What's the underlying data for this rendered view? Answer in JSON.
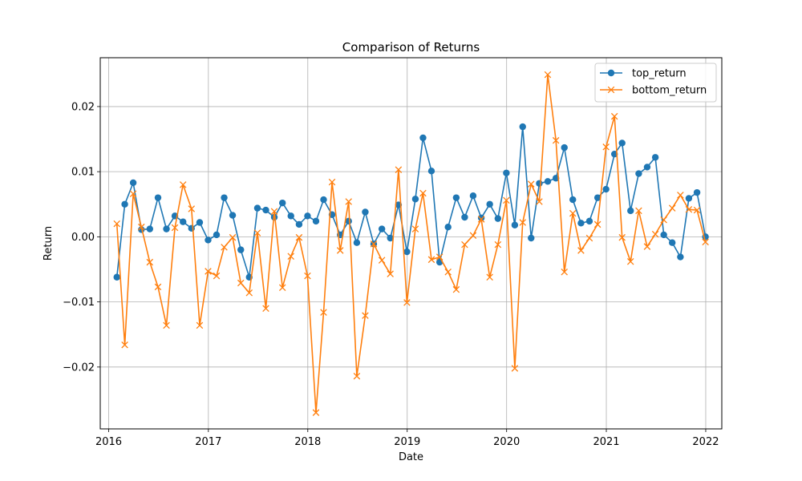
{
  "chart_data": {
    "type": "line",
    "title": "Comparison of Returns",
    "xlabel": "Date",
    "ylabel": "Return",
    "x_tick_labels": [
      "2016",
      "2017",
      "2018",
      "2019",
      "2020",
      "2021",
      "2022"
    ],
    "y_tick_labels": [
      "−0.02",
      "−0.01",
      "0.00",
      "0.01",
      "0.02"
    ],
    "y_ticks": [
      -0.02,
      -0.01,
      0.0,
      0.01,
      0.02
    ],
    "xlim": [
      "2015-12-01",
      "2022-03-01"
    ],
    "ylim": [
      -0.0295,
      0.0275
    ],
    "grid": true,
    "legend_position": "top-right",
    "x": [
      "2016-01-31",
      "2016-02-29",
      "2016-03-31",
      "2016-04-30",
      "2016-05-31",
      "2016-06-30",
      "2016-07-31",
      "2016-08-31",
      "2016-09-30",
      "2016-10-31",
      "2016-11-30",
      "2016-12-31",
      "2017-01-31",
      "2017-02-28",
      "2017-03-31",
      "2017-04-30",
      "2017-05-31",
      "2017-06-30",
      "2017-07-31",
      "2017-08-31",
      "2017-09-30",
      "2017-10-31",
      "2017-11-30",
      "2017-12-31",
      "2018-01-31",
      "2018-02-28",
      "2018-03-31",
      "2018-04-30",
      "2018-05-31",
      "2018-06-30",
      "2018-07-31",
      "2018-08-31",
      "2018-09-30",
      "2018-10-31",
      "2018-11-30",
      "2018-12-31",
      "2019-01-31",
      "2019-02-28",
      "2019-03-31",
      "2019-04-30",
      "2019-05-31",
      "2019-06-30",
      "2019-07-31",
      "2019-08-31",
      "2019-09-30",
      "2019-10-31",
      "2019-11-30",
      "2019-12-31",
      "2020-01-31",
      "2020-02-29",
      "2020-03-31",
      "2020-04-30",
      "2020-05-31",
      "2020-06-30",
      "2020-07-31",
      "2020-08-31",
      "2020-09-30",
      "2020-10-31",
      "2020-11-30",
      "2020-12-31",
      "2021-01-31",
      "2021-02-28",
      "2021-03-31",
      "2021-04-30",
      "2021-05-31",
      "2021-06-30",
      "2021-07-31",
      "2021-08-31",
      "2021-09-30",
      "2021-10-31",
      "2021-11-30",
      "2021-12-31"
    ],
    "series": [
      {
        "name": "top_return",
        "color": "#1f77b4",
        "marker": "circle",
        "values": [
          -0.0062,
          0.005,
          0.0083,
          0.0011,
          0.0012,
          0.006,
          0.0012,
          0.0032,
          0.0023,
          0.0013,
          0.0022,
          -0.0005,
          0.0003,
          0.006,
          0.0033,
          -0.002,
          -0.0062,
          0.0044,
          0.0041,
          0.003,
          0.0052,
          0.0032,
          0.0019,
          0.0032,
          0.0024,
          0.0057,
          0.0034,
          0.0003,
          0.0024,
          -0.0009,
          0.0038,
          -0.0011,
          0.0012,
          -0.0002,
          0.0049,
          -0.0023,
          0.0058,
          0.0152,
          0.0101,
          -0.0039,
          0.0015,
          0.006,
          0.003,
          0.0063,
          0.0029,
          0.005,
          0.0028,
          0.0098,
          0.0018,
          0.0169,
          -0.0002,
          0.0082,
          0.0085,
          0.009,
          0.0137,
          0.0057,
          0.0021,
          0.0024,
          0.006,
          0.0073,
          0.0127,
          0.0144,
          0.004,
          0.0097,
          0.0107,
          0.0122,
          0.0003,
          -0.0009,
          -0.0031,
          0.0059,
          0.0068,
          0.0
        ]
      },
      {
        "name": "bottom_return",
        "color": "#ff7f0e",
        "marker": "x",
        "values": [
          0.002,
          -0.0166,
          0.0066,
          0.0015,
          -0.0039,
          -0.0077,
          -0.0136,
          0.0014,
          0.008,
          0.0043,
          -0.0136,
          -0.0053,
          -0.006,
          -0.0016,
          -0.0001,
          -0.0071,
          -0.0086,
          0.0006,
          -0.011,
          0.0039,
          -0.0078,
          -0.003,
          -0.0001,
          -0.006,
          -0.027,
          -0.0116,
          0.0084,
          -0.0021,
          0.0054,
          -0.0214,
          -0.0121,
          -0.0011,
          -0.0036,
          -0.0057,
          0.0103,
          -0.0101,
          0.0012,
          0.0067,
          -0.0035,
          -0.0031,
          -0.0054,
          -0.0081,
          -0.0012,
          0.0002,
          0.0027,
          -0.0062,
          -0.0012,
          0.0056,
          -0.0202,
          0.0022,
          0.0081,
          0.0054,
          0.0249,
          0.0148,
          -0.0054,
          0.0036,
          -0.0021,
          -0.0002,
          0.0019,
          0.0138,
          0.0185,
          -0.0001,
          -0.0038,
          0.004,
          -0.0015,
          0.0004,
          0.0026,
          0.0044,
          0.0064,
          0.0042,
          0.0041,
          -0.0008
        ]
      }
    ]
  }
}
